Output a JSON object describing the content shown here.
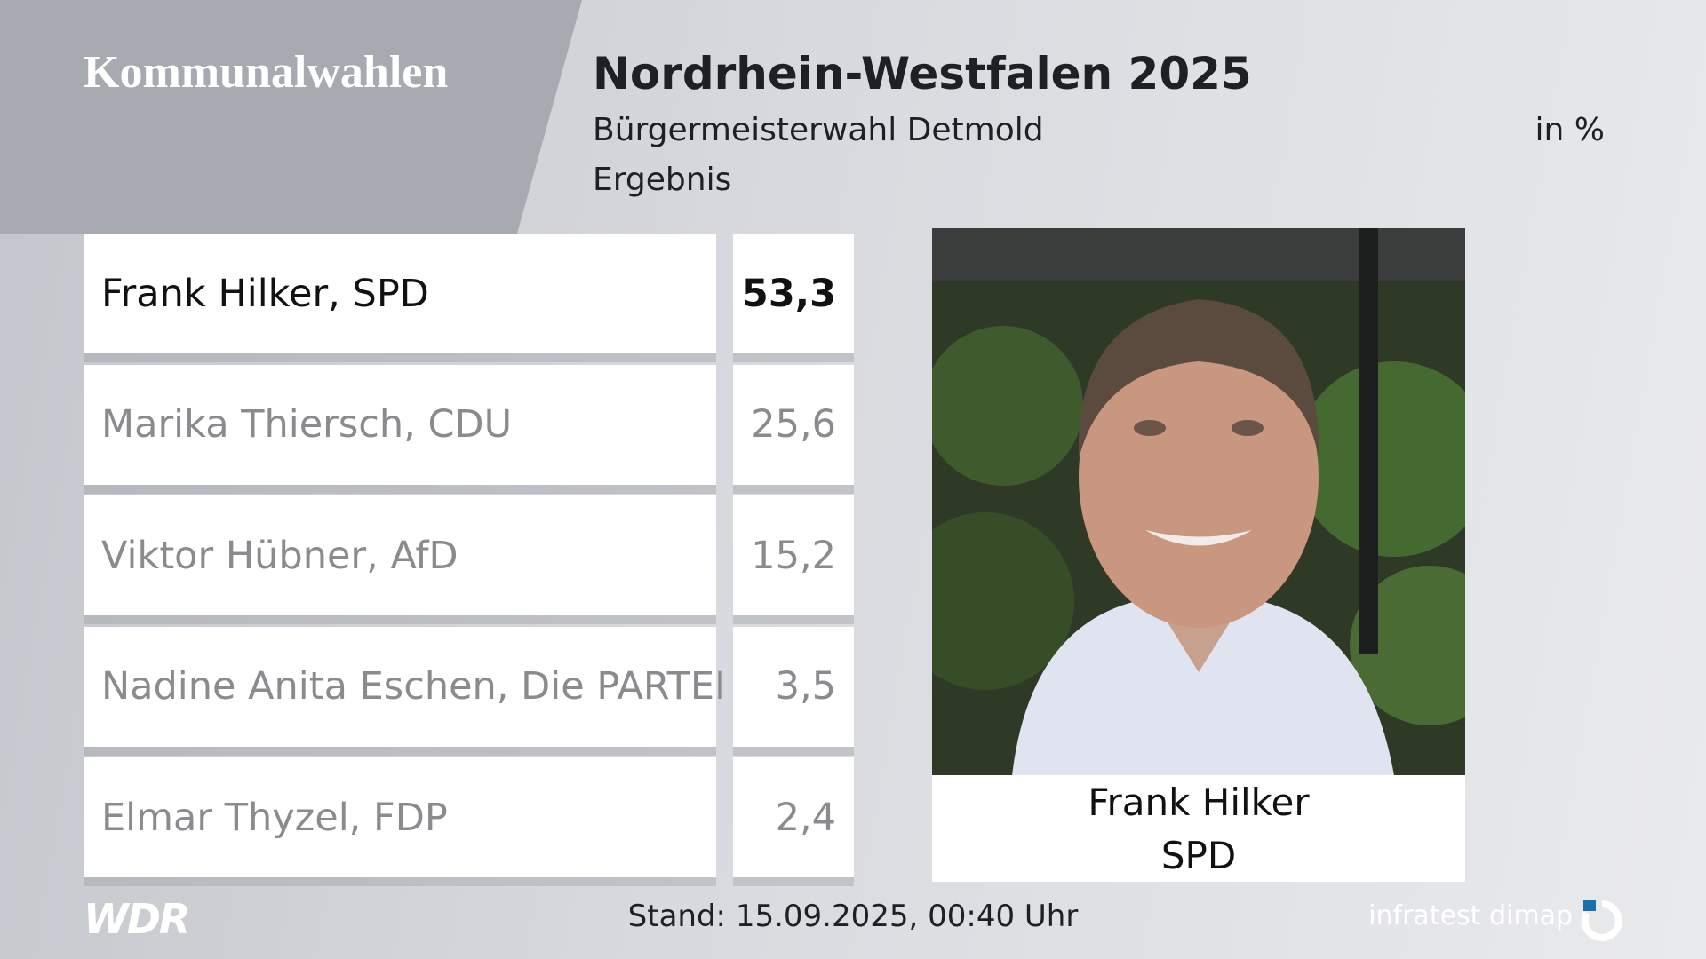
{
  "header": {
    "brand": "Kommunalwahlen",
    "title": "Nordrhein-Westfalen 2025",
    "subtitle": "Bürgermeisterwahl Detmold",
    "unit": "in %",
    "label": "Ergebnis"
  },
  "table": {
    "rows": [
      [
        "Frank Hilker, SPD",
        "53,3"
      ],
      [
        "Marika Thiersch, CDU",
        "25,6"
      ],
      [
        "Viktor Hübner, AfD",
        "15,2"
      ],
      [
        "Nadine Anita Eschen, Die PARTEI",
        "3,5"
      ],
      [
        "Elmar Thyzel, FDP",
        "2,4"
      ]
    ]
  },
  "winner": {
    "name": "Frank Hilker",
    "party": "SPD"
  },
  "footer": {
    "logo": "WDR",
    "timestamp": "Stand: 15.09.2025, 00:40 Uhr",
    "source": "infratest dimap"
  }
}
